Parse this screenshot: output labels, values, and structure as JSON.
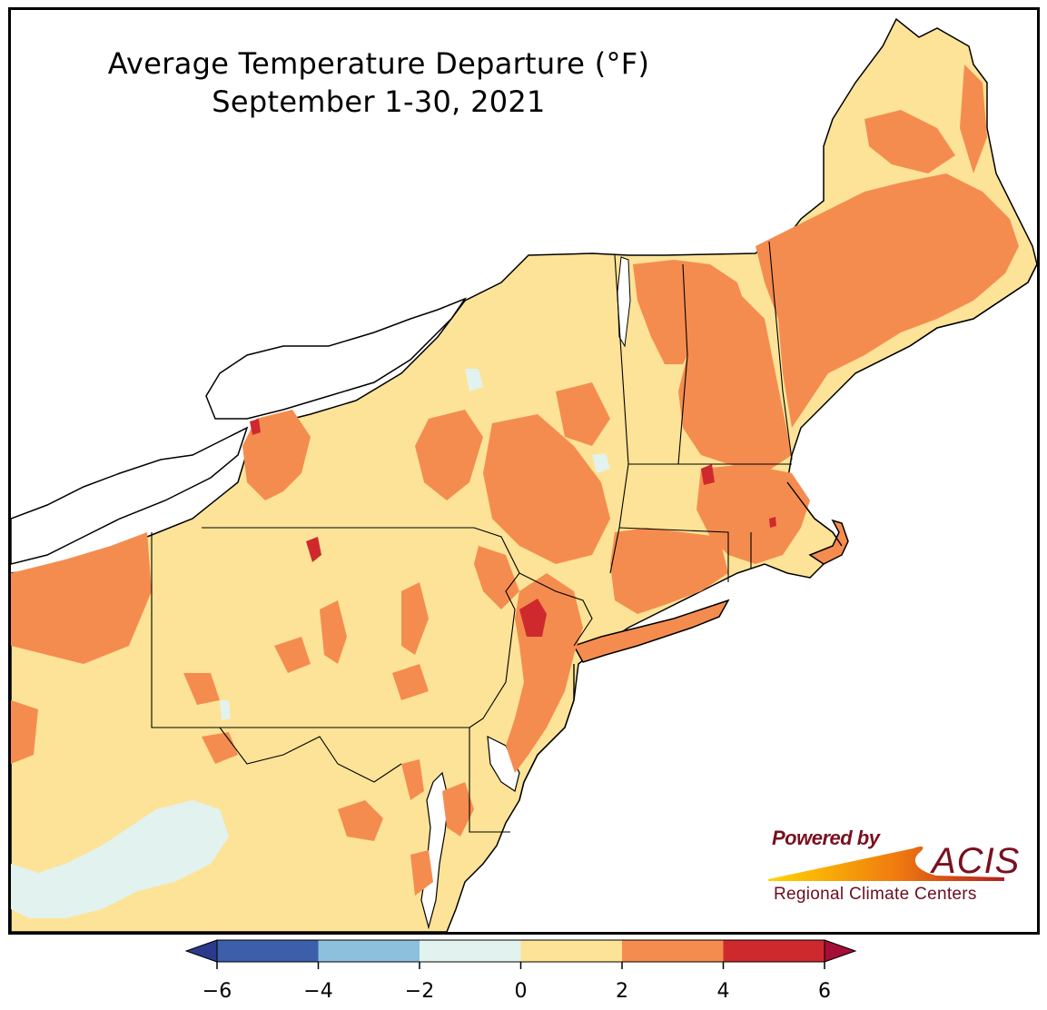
{
  "title": {
    "line1": "Average Temperature Departure (°F)",
    "line2": "September 1-30, 2021"
  },
  "logo": {
    "powered_by": "Powered by",
    "brand": "ACIS",
    "subtitle": "Regional Climate Centers"
  },
  "colorbar": {
    "ticks": [
      "−6",
      "−4",
      "−2",
      "0",
      "2",
      "4",
      "6"
    ],
    "bins": [
      {
        "range": "-6 to -4",
        "color": "#3d5ea8"
      },
      {
        "range": "-4 to -2",
        "color": "#8cc0dd"
      },
      {
        "range": "-2 to 0",
        "color": "#e2f2ee"
      },
      {
        "range": "0 to 2",
        "color": "#fde397"
      },
      {
        "range": "2 to 4",
        "color": "#f58c4f"
      },
      {
        "range": "4 to 6",
        "color": "#ce2a2e"
      }
    ],
    "under_color": "#2b3a8c",
    "over_color": "#a50e36"
  },
  "colors": {
    "background_land": "#fde397",
    "warm": "#f58c4f",
    "hot": "#ce2a2e",
    "cool": "#e2f2ee",
    "water": "#ffffff",
    "border": "#000000"
  }
}
